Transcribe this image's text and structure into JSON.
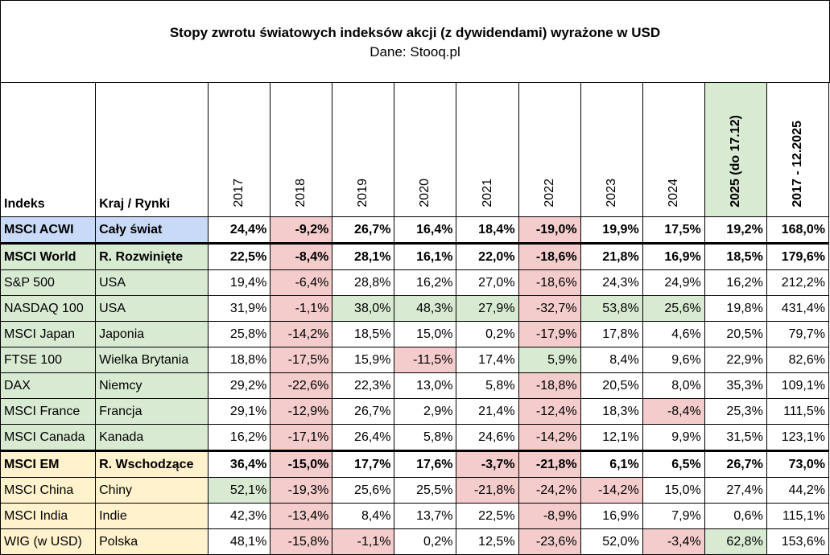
{
  "header": {
    "title": "Stopy zwrotu światowych indeksów akcji (z dywidendami) wyrażone w USD",
    "subtitle": "Dane: Stooq.pl"
  },
  "table": {
    "columns": [
      "Indeks",
      "Kraj / Rynki",
      "2017",
      "2018",
      "2019",
      "2020",
      "2021",
      "2022",
      "2023",
      "2024",
      "2025 (do 17.12)",
      "2017 - 12.2025"
    ],
    "column_fills": [
      null,
      null,
      null,
      null,
      null,
      null,
      null,
      null,
      null,
      null,
      "#d9ead3",
      null
    ],
    "column_bold": [
      true,
      true,
      false,
      false,
      false,
      false,
      false,
      false,
      false,
      false,
      true,
      true
    ],
    "rows": [
      {
        "bold": true,
        "cells": [
          "MSCI ACWI",
          "Cały świat",
          "24,4%",
          "-9,2%",
          "26,7%",
          "16,4%",
          "18,4%",
          "-19,0%",
          "19,9%",
          "17,5%",
          "19,2%",
          "168,0%"
        ],
        "fills": [
          "#c9daf8",
          "#c9daf8",
          null,
          "#f4cccc",
          null,
          null,
          null,
          "#f4cccc",
          null,
          null,
          null,
          null
        ]
      },
      {
        "bold": true,
        "cells": [
          "MSCI World",
          "R. Rozwinięte",
          "22,5%",
          "-8,4%",
          "28,1%",
          "16,1%",
          "22,0%",
          "-18,6%",
          "21,8%",
          "16,9%",
          "18,5%",
          "179,6%"
        ],
        "fills": [
          "#d9ead3",
          "#d9ead3",
          null,
          "#f4cccc",
          null,
          null,
          null,
          "#f4cccc",
          null,
          null,
          null,
          null
        ]
      },
      {
        "bold": false,
        "cells": [
          "S&P 500",
          "USA",
          "19,4%",
          "-6,4%",
          "28,8%",
          "16,2%",
          "27,0%",
          "-18,6%",
          "24,3%",
          "24,9%",
          "16,2%",
          "212,2%"
        ],
        "fills": [
          "#d9ead3",
          "#d9ead3",
          null,
          "#f4cccc",
          null,
          null,
          null,
          "#f4cccc",
          null,
          null,
          null,
          null
        ]
      },
      {
        "bold": false,
        "cells": [
          "NASDAQ 100",
          "USA",
          "31,9%",
          "-1,1%",
          "38,0%",
          "48,3%",
          "27,9%",
          "-32,7%",
          "53,8%",
          "25,6%",
          "19,8%",
          "431,4%"
        ],
        "fills": [
          "#d9ead3",
          "#d9ead3",
          null,
          "#f4cccc",
          "#d9ead3",
          "#d9ead3",
          "#d9ead3",
          "#f4cccc",
          "#d9ead3",
          "#d9ead3",
          null,
          null
        ]
      },
      {
        "bold": false,
        "cells": [
          "MSCI Japan",
          "Japonia",
          "25,8%",
          "-14,2%",
          "18,5%",
          "15,0%",
          "0,2%",
          "-17,9%",
          "17,8%",
          "4,6%",
          "20,5%",
          "79,7%"
        ],
        "fills": [
          "#d9ead3",
          "#d9ead3",
          null,
          "#f4cccc",
          null,
          null,
          null,
          "#f4cccc",
          null,
          null,
          null,
          null
        ]
      },
      {
        "bold": false,
        "cells": [
          "FTSE 100",
          "Wielka Brytania",
          "18,8%",
          "-17,5%",
          "15,9%",
          "-11,5%",
          "17,4%",
          "5,9%",
          "8,4%",
          "9,6%",
          "22,9%",
          "82,6%"
        ],
        "fills": [
          "#d9ead3",
          "#d9ead3",
          null,
          "#f4cccc",
          null,
          "#f4cccc",
          null,
          "#d9ead3",
          null,
          null,
          null,
          null
        ]
      },
      {
        "bold": false,
        "cells": [
          "DAX",
          "Niemcy",
          "29,2%",
          "-22,6%",
          "22,3%",
          "13,0%",
          "5,8%",
          "-18,8%",
          "20,5%",
          "8,0%",
          "35,3%",
          "109,1%"
        ],
        "fills": [
          "#d9ead3",
          "#d9ead3",
          null,
          "#f4cccc",
          null,
          null,
          null,
          "#f4cccc",
          null,
          null,
          null,
          null
        ]
      },
      {
        "bold": false,
        "cells": [
          "MSCI France",
          "Francja",
          "29,1%",
          "-12,9%",
          "26,7%",
          "2,9%",
          "21,4%",
          "-12,4%",
          "18,3%",
          "-8,4%",
          "25,3%",
          "111,5%"
        ],
        "fills": [
          "#d9ead3",
          "#d9ead3",
          null,
          "#f4cccc",
          null,
          null,
          null,
          "#f4cccc",
          null,
          "#f4cccc",
          null,
          null
        ]
      },
      {
        "bold": false,
        "cells": [
          "MSCI Canada",
          "Kanada",
          "16,2%",
          "-17,1%",
          "26,4%",
          "5,8%",
          "24,6%",
          "-14,2%",
          "12,1%",
          "9,9%",
          "31,5%",
          "123,1%"
        ],
        "fills": [
          "#d9ead3",
          "#d9ead3",
          null,
          "#f4cccc",
          null,
          null,
          null,
          "#f4cccc",
          null,
          null,
          null,
          null
        ]
      },
      {
        "bold": true,
        "cells": [
          "MSCI EM",
          "R. Wschodzące",
          "36,4%",
          "-15,0%",
          "17,7%",
          "17,6%",
          "-3,7%",
          "-21,8%",
          "6,1%",
          "6,5%",
          "26,7%",
          "73,0%"
        ],
        "fills": [
          "#fff2cc",
          "#fff2cc",
          null,
          "#f4cccc",
          null,
          null,
          "#f4cccc",
          "#f4cccc",
          null,
          null,
          null,
          null
        ]
      },
      {
        "bold": false,
        "cells": [
          "MSCI China",
          "Chiny",
          "52,1%",
          "-19,3%",
          "25,6%",
          "25,5%",
          "-21,8%",
          "-24,2%",
          "-14,2%",
          "15,0%",
          "27,4%",
          "44,2%"
        ],
        "fills": [
          "#fff2cc",
          "#fff2cc",
          "#d9ead3",
          "#f4cccc",
          null,
          null,
          "#f4cccc",
          "#f4cccc",
          "#f4cccc",
          null,
          null,
          null
        ]
      },
      {
        "bold": false,
        "cells": [
          "MSCI India",
          "Indie",
          "42,3%",
          "-13,4%",
          "8,4%",
          "13,7%",
          "22,5%",
          "-8,9%",
          "16,9%",
          "7,9%",
          "0,6%",
          "115,1%"
        ],
        "fills": [
          "#fff2cc",
          "#fff2cc",
          null,
          "#f4cccc",
          null,
          null,
          null,
          "#f4cccc",
          null,
          null,
          null,
          null
        ]
      },
      {
        "bold": false,
        "cells": [
          "WIG (w USD)",
          "Polska",
          "48,1%",
          "-15,8%",
          "-1,1%",
          "0,2%",
          "12,5%",
          "-23,6%",
          "52,0%",
          "-3,4%",
          "62,8%",
          "153,6%"
        ],
        "fills": [
          "#fff2cc",
          "#fff2cc",
          null,
          "#f4cccc",
          "#f4cccc",
          null,
          null,
          "#f4cccc",
          null,
          "#f4cccc",
          "#d9ead3",
          null
        ]
      }
    ]
  }
}
